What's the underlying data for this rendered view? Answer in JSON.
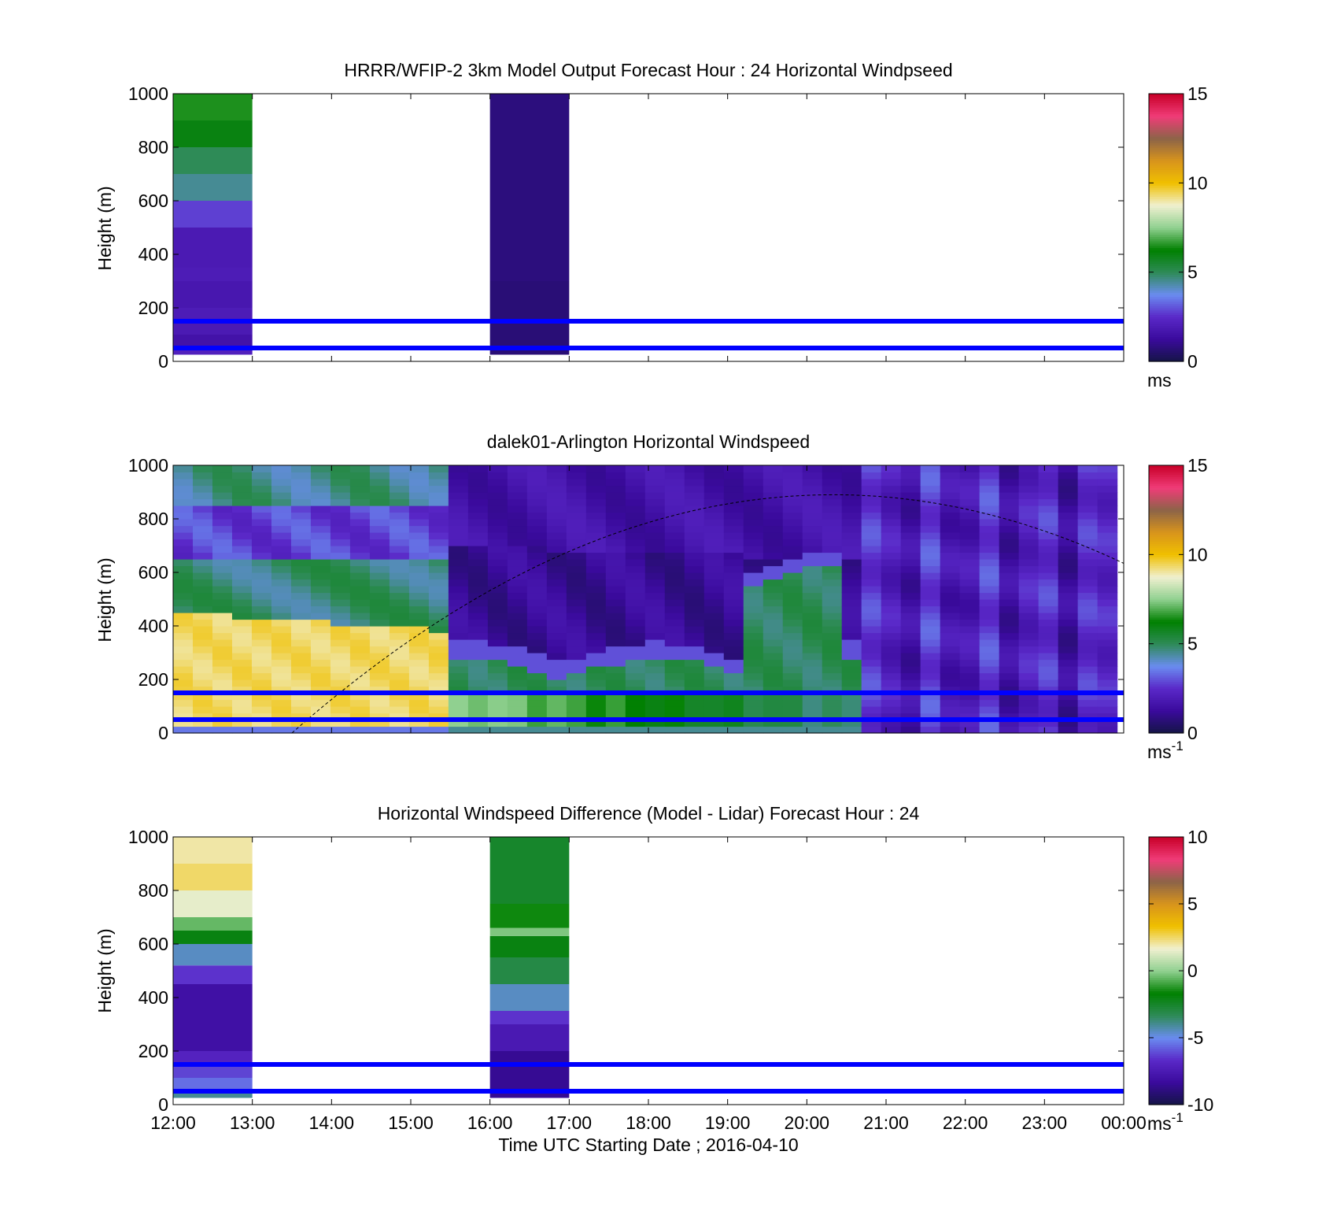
{
  "figure": {
    "xlabel": "Time UTC  Starting Date ; 2016-04-10",
    "x_tick_labels": [
      "12:00",
      "13:00",
      "14:00",
      "15:00",
      "16:00",
      "17:00",
      "18:00",
      "19:00",
      "20:00",
      "21:00",
      "22:00",
      "23:00",
      "00:00"
    ]
  },
  "colors": {
    "overlay_lines": "#0000ff",
    "colormap_stops": [
      "#141446",
      "#3a0a9c",
      "#5a28c8",
      "#6a8cf0",
      "#2e8b57",
      "#008000",
      "#90d090",
      "#f0f0d0",
      "#f0c000",
      "#d8941c",
      "#8c6448",
      "#f03c78",
      "#c80028"
    ]
  },
  "chart_data": [
    {
      "type": "heatmap",
      "title": "HRRR/WFIP-2 3km Model Output   Forecast Hour : 24 Horizontal Windpseed",
      "ylabel": "Height (m)",
      "xlim": [
        "12:00",
        "00:00"
      ],
      "ylim": [
        0,
        1000
      ],
      "y_ticks": [
        0,
        200,
        400,
        600,
        800,
        1000
      ],
      "colorbar": {
        "range": [
          0,
          15
        ],
        "ticks": [
          0,
          5,
          10,
          15
        ],
        "unit": "ms"
      },
      "hlines_m": [
        50,
        150
      ],
      "columns": [
        {
          "t_start": "12:00",
          "t_end": "13:00",
          "bins": [
            {
              "z": [
                25,
                50
              ],
              "v": 2.2
            },
            {
              "z": [
                50,
                100
              ],
              "v": 1.6
            },
            {
              "z": [
                100,
                150
              ],
              "v": 1.9
            },
            {
              "z": [
                150,
                200
              ],
              "v": 2.0
            },
            {
              "z": [
                200,
                300
              ],
              "v": 1.8
            },
            {
              "z": [
                300,
                350
              ],
              "v": 2.0
            },
            {
              "z": [
                350,
                500
              ],
              "v": 1.9
            },
            {
              "z": [
                500,
                600
              ],
              "v": 2.8
            },
            {
              "z": [
                600,
                700
              ],
              "v": 4.5
            },
            {
              "z": [
                700,
                800
              ],
              "v": 5.0
            },
            {
              "z": [
                800,
                900
              ],
              "v": 6.0
            },
            {
              "z": [
                900,
                1000
              ],
              "v": 6.5
            }
          ]
        },
        {
          "t_start": "16:00",
          "t_end": "17:00",
          "bins": [
            {
              "z": [
                25,
                300
              ],
              "v": 0.7
            },
            {
              "z": [
                300,
                1000
              ],
              "v": 0.8
            }
          ]
        }
      ]
    },
    {
      "type": "heatmap",
      "title": "dalek01-Arlington  Horizontal Windspeed",
      "ylabel": "Height (m)",
      "xlim": [
        "12:00",
        "00:00"
      ],
      "ylim": [
        0,
        1000
      ],
      "y_ticks": [
        0,
        200,
        400,
        600,
        800,
        1000
      ],
      "colorbar": {
        "range": [
          0,
          15
        ],
        "ticks": [
          0,
          5,
          10,
          15
        ],
        "unit": "ms",
        "unit_sup": "-1"
      },
      "hlines_m": [
        50,
        150
      ],
      "curve_peak_m": 890,
      "curve_peak_time": "20:20",
      "field_description": [
        {
          "t": "12:00-15:30",
          "z": "50-450",
          "v": 9.5
        },
        {
          "t": "12:00-15:00",
          "z": "450-650",
          "v": 5.0
        },
        {
          "t": "12:00-15:00",
          "z": "650-850",
          "v": 3.0
        },
        {
          "t": "12:00-15:00",
          "z": "850-1000",
          "v": 4.8
        },
        {
          "t": "15:30-20:40",
          "z": "0-450",
          "v": 5.5
        },
        {
          "t": "15:00-20:00",
          "z": "450-1000",
          "v": 1.5
        },
        {
          "t": "20:40-23:55",
          "z": "0-1000",
          "v": 2.0
        }
      ]
    },
    {
      "type": "heatmap",
      "title": "Horizontal Windspeed Difference (Model - Lidar) Forecast Hour : 24",
      "ylabel": "Height (m)",
      "xlim": [
        "12:00",
        "00:00"
      ],
      "ylim": [
        0,
        1000
      ],
      "y_ticks": [
        0,
        200,
        400,
        600,
        800,
        1000
      ],
      "colorbar": {
        "range": [
          -10,
          10
        ],
        "ticks": [
          -10,
          -5,
          0,
          5,
          10
        ],
        "unit": "ms",
        "unit_sup": "-1"
      },
      "hlines_m": [
        50,
        150
      ],
      "columns": [
        {
          "t_start": "12:00",
          "t_end": "13:00",
          "bins": [
            {
              "z": [
                25,
                50
              ],
              "v": -4.0
            },
            {
              "z": [
                50,
                100
              ],
              "v": -5.5
            },
            {
              "z": [
                100,
                150
              ],
              "v": -6.2
            },
            {
              "z": [
                150,
                200
              ],
              "v": -7.0
            },
            {
              "z": [
                200,
                450
              ],
              "v": -8.0
            },
            {
              "z": [
                450,
                520
              ],
              "v": -6.5
            },
            {
              "z": [
                520,
                600
              ],
              "v": -4.5
            },
            {
              "z": [
                600,
                650
              ],
              "v": -2.0
            },
            {
              "z": [
                650,
                700
              ],
              "v": -0.5
            },
            {
              "z": [
                700,
                800
              ],
              "v": 1.5
            },
            {
              "z": [
                800,
                900
              ],
              "v": 2.5
            },
            {
              "z": [
                900,
                1000
              ],
              "v": 2.0
            }
          ]
        },
        {
          "t_start": "16:00",
          "t_end": "17:00",
          "bins": [
            {
              "z": [
                25,
                200
              ],
              "v": -8.5
            },
            {
              "z": [
                200,
                300
              ],
              "v": -7.5
            },
            {
              "z": [
                300,
                350
              ],
              "v": -6.5
            },
            {
              "z": [
                350,
                450
              ],
              "v": -4.5
            },
            {
              "z": [
                450,
                550
              ],
              "v": -3.0
            },
            {
              "z": [
                550,
                630
              ],
              "v": -2.0
            },
            {
              "z": [
                630,
                660
              ],
              "v": -0.2
            },
            {
              "z": [
                660,
                750
              ],
              "v": -1.5
            },
            {
              "z": [
                750,
                1000
              ],
              "v": -2.5
            }
          ]
        }
      ]
    }
  ]
}
